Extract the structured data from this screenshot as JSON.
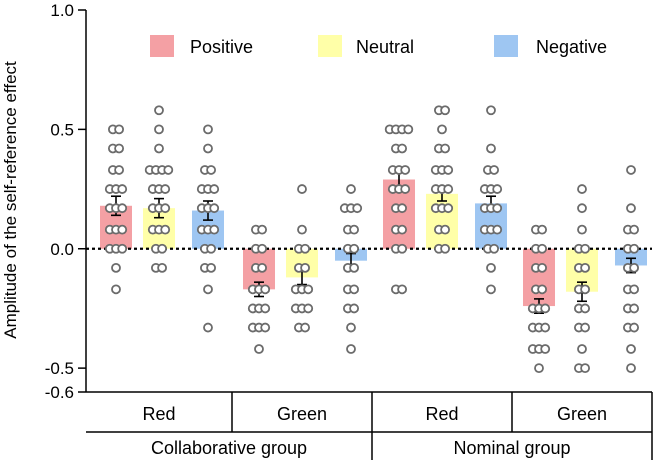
{
  "chart_data": {
    "type": "bar",
    "title": "",
    "ylabel": "Amplitude of the self-reference effect",
    "xlabel": "",
    "ylim": [
      -0.6,
      1.0
    ],
    "yticks": [
      {
        "value": 1.0,
        "label": "1.0"
      },
      {
        "value": 0.5,
        "label": "0.5"
      },
      {
        "value": 0.0,
        "label": "0.0"
      },
      {
        "value": -0.5,
        "label": "-0.5"
      },
      {
        "value": -0.6,
        "label": "-0.6"
      }
    ],
    "legend": {
      "position": "top",
      "entries": [
        {
          "name": "Positive",
          "color": "#f4a0a4"
        },
        {
          "name": "Neutral",
          "color": "#ffffa8"
        },
        {
          "name": "Negative",
          "color": "#9ec6f2"
        }
      ]
    },
    "groups": [
      {
        "label": "Collaborative group",
        "subgroups": [
          "Red",
          "Green"
        ]
      },
      {
        "label": "Nominal group",
        "subgroups": [
          "Red",
          "Green"
        ]
      }
    ],
    "categories": [
      "Collaborative Red",
      "Collaborative Green",
      "Nominal Red",
      "Nominal Green"
    ],
    "category_labels": [
      "Red",
      "Green",
      "Red",
      "Green"
    ],
    "series": [
      {
        "name": "Positive",
        "values": [
          0.18,
          -0.17,
          0.29,
          -0.24
        ],
        "errors": [
          0.04,
          0.03,
          0.03,
          0.03
        ],
        "points": [
          [
            0.5,
            0.5,
            0.42,
            0.42,
            0.33,
            0.33,
            0.25,
            0.25,
            0.25,
            0.17,
            0.17,
            0.17,
            0.08,
            0.08,
            0.08,
            0.0,
            0.0,
            0.0,
            -0.08,
            -0.17
          ],
          [
            0.08,
            0.08,
            0.0,
            0.0,
            -0.08,
            -0.08,
            -0.17,
            -0.17,
            -0.17,
            -0.25,
            -0.25,
            -0.25,
            -0.33,
            -0.33,
            -0.33,
            -0.42
          ],
          [
            0.5,
            0.5,
            0.5,
            0.5,
            0.42,
            0.42,
            0.33,
            0.33,
            0.33,
            0.25,
            0.25,
            0.25,
            0.17,
            0.17,
            0.08,
            0.08,
            0.0,
            0.0,
            -0.17,
            -0.17
          ],
          [
            0.08,
            0.08,
            0.0,
            0.0,
            -0.08,
            -0.08,
            -0.17,
            -0.17,
            -0.25,
            -0.25,
            -0.25,
            -0.33,
            -0.33,
            -0.33,
            -0.42,
            -0.42,
            -0.42,
            -0.5
          ]
        ]
      },
      {
        "name": "Neutral",
        "values": [
          0.17,
          -0.12,
          0.23,
          -0.18
        ],
        "errors": [
          0.04,
          0.03,
          0.03,
          0.04
        ],
        "points": [
          [
            0.58,
            0.5,
            0.42,
            0.33,
            0.33,
            0.33,
            0.33,
            0.25,
            0.25,
            0.25,
            0.17,
            0.17,
            0.17,
            0.08,
            0.08,
            0.08,
            0.0,
            0.0,
            -0.08,
            -0.08
          ],
          [
            0.25,
            0.08,
            0.0,
            0.0,
            -0.08,
            -0.08,
            -0.17,
            -0.17,
            -0.17,
            -0.25,
            -0.25,
            -0.25,
            -0.33,
            -0.33
          ],
          [
            0.58,
            0.58,
            0.5,
            0.42,
            0.42,
            0.33,
            0.33,
            0.33,
            0.25,
            0.25,
            0.25,
            0.17,
            0.17,
            0.17,
            0.08,
            0.08,
            0.0,
            0.0
          ],
          [
            0.25,
            0.17,
            0.08,
            0.0,
            0.0,
            -0.08,
            -0.08,
            -0.17,
            -0.17,
            -0.25,
            -0.25,
            -0.33,
            -0.33,
            -0.42,
            -0.5,
            -0.5
          ]
        ]
      },
      {
        "name": "Negative",
        "values": [
          0.16,
          -0.05,
          0.19,
          -0.07
        ],
        "errors": [
          0.04,
          0.03,
          0.03,
          0.03
        ],
        "points": [
          [
            0.5,
            0.42,
            0.33,
            0.33,
            0.25,
            0.25,
            0.25,
            0.17,
            0.17,
            0.17,
            0.08,
            0.08,
            0.08,
            0.0,
            0.0,
            -0.08,
            -0.08,
            -0.17,
            -0.33
          ],
          [
            0.25,
            0.17,
            0.17,
            0.17,
            0.08,
            0.08,
            0.0,
            0.0,
            -0.08,
            -0.08,
            -0.17,
            -0.17,
            -0.25,
            -0.25,
            -0.33,
            -0.42
          ],
          [
            0.58,
            0.42,
            0.33,
            0.33,
            0.25,
            0.25,
            0.25,
            0.17,
            0.17,
            0.17,
            0.08,
            0.08,
            0.08,
            0.0,
            0.0,
            -0.08,
            -0.17
          ],
          [
            0.33,
            0.17,
            0.08,
            0.08,
            0.0,
            0.0,
            -0.08,
            -0.08,
            -0.17,
            -0.17,
            -0.25,
            -0.25,
            -0.33,
            -0.33,
            -0.42,
            -0.5
          ]
        ]
      }
    ]
  }
}
